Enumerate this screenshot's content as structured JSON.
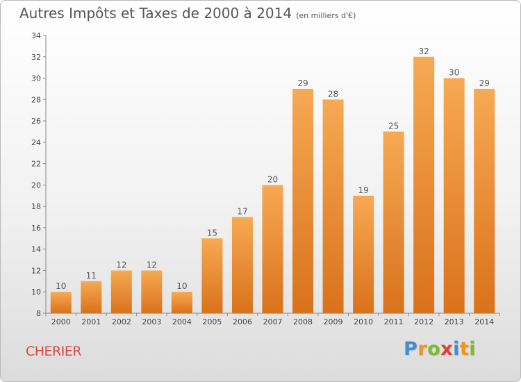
{
  "header": {
    "title": "Autres Impôts et Taxes de 2000 à 2014",
    "unit": "(en milliers d'€)"
  },
  "footer": {
    "commune": "CHERIER",
    "brand_letters": [
      {
        "ch": "P",
        "color": "#3f8fd8"
      },
      {
        "ch": "r",
        "color": "#f3931c"
      },
      {
        "ch": "o",
        "color": "#7dbb2d"
      },
      {
        "ch": "x",
        "color": "#e2412f"
      },
      {
        "ch": "i",
        "color": "#3f8fd8"
      },
      {
        "ch": "t",
        "color": "#f3931c"
      },
      {
        "ch": "i",
        "color": "#7dbb2d"
      }
    ]
  },
  "chart_data": {
    "type": "bar",
    "categories": [
      "2000",
      "2001",
      "2002",
      "2003",
      "2004",
      "2005",
      "2006",
      "2007",
      "2008",
      "2009",
      "2010",
      "2011",
      "2012",
      "2013",
      "2014"
    ],
    "values": [
      10,
      11,
      12,
      12,
      10,
      15,
      17,
      20,
      29,
      28,
      19,
      25,
      32,
      30,
      29
    ],
    "ylim": [
      8,
      34
    ],
    "yticks": [
      8,
      10,
      12,
      14,
      16,
      18,
      20,
      22,
      24,
      26,
      28,
      30,
      32,
      34
    ],
    "data_labels": [
      "10",
      "11",
      "12",
      "12",
      "10",
      "15",
      "17",
      "20",
      "29",
      "28",
      "19",
      "25",
      "32",
      "30",
      "29"
    ],
    "grid": false,
    "bar_color_top": "#f7a953",
    "bar_color_bottom": "#d9721b"
  }
}
